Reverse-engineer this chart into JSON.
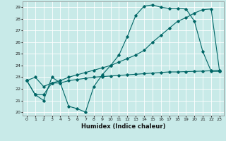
{
  "xlabel": "Humidex (Indice chaleur)",
  "ylabel": "",
  "bg_color": "#c8eae8",
  "grid_color": "#ffffff",
  "line_color": "#006666",
  "xlim": [
    -0.5,
    23.5
  ],
  "ylim": [
    19.7,
    29.5
  ],
  "yticks": [
    20,
    21,
    22,
    23,
    24,
    25,
    26,
    27,
    28,
    29
  ],
  "xticks": [
    0,
    1,
    2,
    3,
    4,
    5,
    6,
    7,
    8,
    9,
    10,
    11,
    12,
    13,
    14,
    15,
    16,
    17,
    18,
    19,
    20,
    21,
    22,
    23
  ],
  "line1_x": [
    0,
    1,
    2,
    3,
    4,
    5,
    6,
    7,
    8,
    9,
    10,
    11,
    12,
    13,
    14,
    15,
    16,
    17,
    18,
    19,
    20,
    21,
    22,
    23
  ],
  "line1_y": [
    22.7,
    21.5,
    21.0,
    23.0,
    22.5,
    20.5,
    20.3,
    20.0,
    22.2,
    23.2,
    24.0,
    24.9,
    26.5,
    28.3,
    29.1,
    29.2,
    29.0,
    28.9,
    28.9,
    28.85,
    27.8,
    25.2,
    23.5,
    23.5
  ],
  "line2_x": [
    0,
    1,
    2,
    3,
    4,
    5,
    6,
    7,
    8,
    9,
    10,
    11,
    12,
    13,
    14,
    15,
    16,
    17,
    18,
    19,
    20,
    21,
    22,
    23
  ],
  "line2_y": [
    22.7,
    21.5,
    21.5,
    22.5,
    22.5,
    22.7,
    22.8,
    22.9,
    23.0,
    23.05,
    23.1,
    23.15,
    23.2,
    23.25,
    23.3,
    23.35,
    23.4,
    23.45,
    23.45,
    23.48,
    23.5,
    23.52,
    23.55,
    23.6
  ],
  "line3_x": [
    0,
    1,
    2,
    3,
    4,
    5,
    6,
    7,
    8,
    9,
    10,
    11,
    12,
    13,
    14,
    15,
    16,
    17,
    18,
    19,
    20,
    21,
    22,
    23
  ],
  "line3_y": [
    22.7,
    23.0,
    22.2,
    22.5,
    22.7,
    23.0,
    23.2,
    23.4,
    23.6,
    23.8,
    24.0,
    24.3,
    24.6,
    24.9,
    25.3,
    26.0,
    26.6,
    27.2,
    27.8,
    28.1,
    28.5,
    28.8,
    28.85,
    23.5
  ]
}
